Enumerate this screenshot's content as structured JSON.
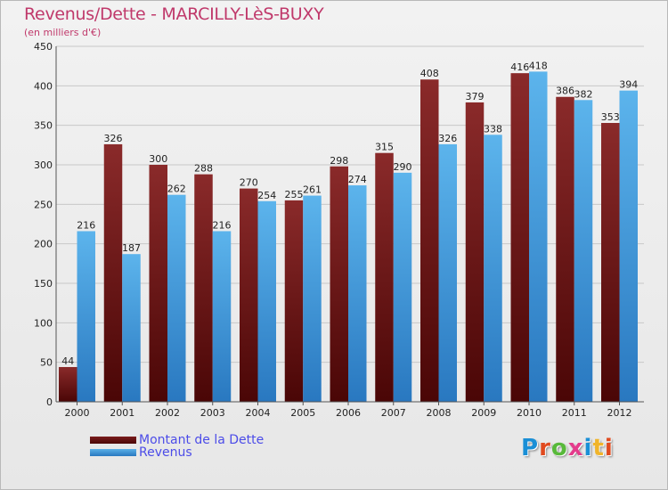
{
  "title": "Revenus/Dette - MARCILLY-LèS-BUXY",
  "subtitle": "(en milliers d'€)",
  "logo": {
    "text": "Proxiti",
    "letter_colors": [
      "#1a8fd6",
      "#e04a1f",
      "#58b93a",
      "#e43b8c",
      "#1a8fd6",
      "#f0b42a",
      "#e04a1f"
    ]
  },
  "colors": {
    "dette": "#7a1c1c",
    "dette_dark": "#4a0606",
    "revenus": "#5ab0e8",
    "revenus_dark": "#2978c0",
    "grid": "#c8c8c8",
    "axis": "#555555"
  },
  "chart_data": {
    "type": "bar",
    "categories": [
      "2000",
      "2001",
      "2002",
      "2003",
      "2004",
      "2005",
      "2006",
      "2007",
      "2008",
      "2009",
      "2010",
      "2011",
      "2012"
    ],
    "series": [
      {
        "name": "Montant de la Dette",
        "values": [
          44,
          326,
          300,
          288,
          270,
          255,
          298,
          315,
          408,
          379,
          416,
          386,
          353
        ]
      },
      {
        "name": "Revenus",
        "values": [
          216,
          187,
          262,
          216,
          254,
          261,
          274,
          290,
          326,
          338,
          418,
          382,
          394
        ]
      }
    ],
    "yticks": [
      "0",
      "50",
      "100",
      "150",
      "200",
      "250",
      "300",
      "350",
      "400",
      "450"
    ],
    "ylim": [
      0,
      450
    ],
    "grid": true,
    "legend_position": "bottom-left"
  }
}
